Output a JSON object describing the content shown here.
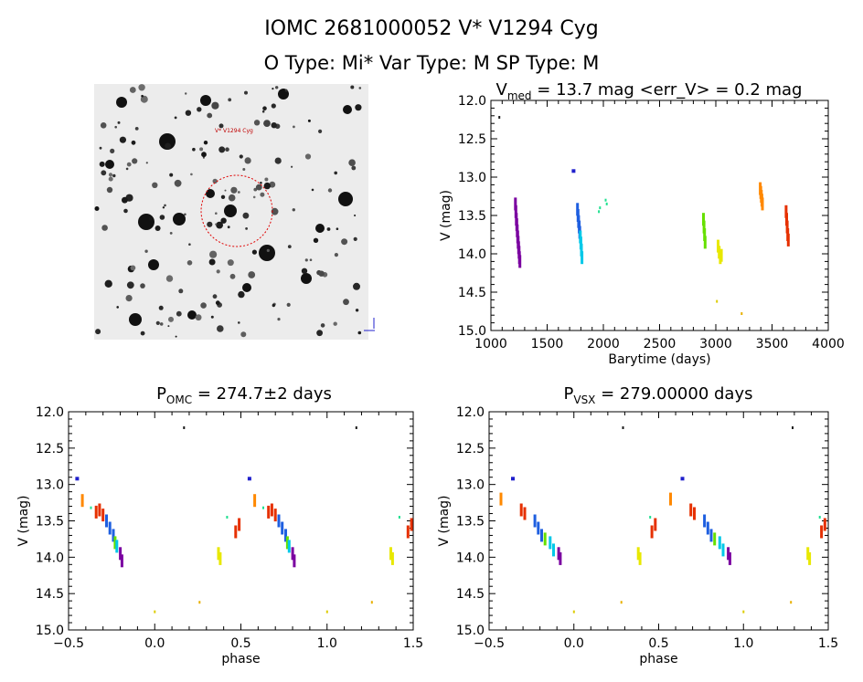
{
  "header": {
    "line1": "IOMC 2681000052    V* V1294 Cyg",
    "line2": "O Type: Mi*  Var Type: M  SP Type: M"
  },
  "finder": {
    "target_label": "V* V1294 Cyg"
  },
  "chart_data": [
    {
      "id": "lightcurve",
      "type": "scatter",
      "title_main": "V",
      "title_sub": "med",
      "title_rest": " = 13.7 mag <err_V> = 0.2 mag",
      "xlabel": "Barytime (days)",
      "ylabel": "V (mag)",
      "xlim": [
        1000,
        4000
      ],
      "ylim": [
        15.0,
        12.0
      ],
      "xticks": [
        1000,
        1500,
        2000,
        2500,
        3000,
        3500,
        4000
      ],
      "xtick_labels": [
        "1000",
        "1500",
        "2000",
        "2500",
        "3000",
        "3500",
        "4000"
      ],
      "yticks": [
        12.0,
        12.5,
        13.0,
        13.5,
        14.0,
        14.5,
        15.0
      ],
      "ytick_labels": [
        "12.0",
        "12.5",
        "13.0",
        "13.5",
        "14.0",
        "14.5",
        "15.0"
      ],
      "groups": [
        {
          "color": "#1a1a1a",
          "x": [
            1075
          ],
          "y": [
            12.22
          ],
          "shape": "dot"
        },
        {
          "color": "#7a00a0",
          "x": [
            1218,
            1222,
            1226,
            1230,
            1234,
            1238,
            1242,
            1246,
            1250,
            1254,
            1258
          ],
          "y": [
            13.35,
            13.45,
            13.55,
            13.62,
            13.7,
            13.78,
            13.85,
            13.92,
            13.98,
            14.05,
            14.1
          ],
          "shape": "bar"
        },
        {
          "color": "#2020cc",
          "x": [
            1735
          ],
          "y": [
            12.92
          ],
          "shape": "sq"
        },
        {
          "color": "#1e5fe0",
          "x": [
            1770,
            1775,
            1780,
            1785,
            1790
          ],
          "y": [
            13.42,
            13.5,
            13.58,
            13.65,
            13.72
          ],
          "shape": "bar"
        },
        {
          "color": "#00c8e8",
          "x": [
            1795,
            1800,
            1805,
            1810
          ],
          "y": [
            13.78,
            13.86,
            13.95,
            14.05
          ],
          "shape": "bar"
        },
        {
          "color": "#20e090",
          "x": [
            1960,
            1970,
            2020,
            2030
          ],
          "y": [
            13.45,
            13.4,
            13.3,
            13.35
          ],
          "shape": "dot"
        },
        {
          "color": "#66e000",
          "x": [
            2890,
            2895,
            2900,
            2905
          ],
          "y": [
            13.55,
            13.65,
            13.75,
            13.85
          ],
          "shape": "bar"
        },
        {
          "color": "#e8e800",
          "x": [
            3020,
            3030,
            3040,
            3050
          ],
          "y": [
            13.9,
            13.98,
            14.05,
            14.02
          ],
          "shape": "bar"
        },
        {
          "color": "#ddcc00",
          "x": [
            3010
          ],
          "y": [
            14.62
          ],
          "shape": "dot"
        },
        {
          "color": "#e8b000",
          "x": [
            3230
          ],
          "y": [
            14.78
          ],
          "shape": "dot"
        },
        {
          "color": "#ff8800",
          "x": [
            3395,
            3400,
            3405,
            3410,
            3415
          ],
          "y": [
            13.15,
            13.2,
            13.25,
            13.3,
            13.35
          ],
          "shape": "bar"
        },
        {
          "color": "#e63000",
          "x": [
            3625,
            3630,
            3635,
            3640,
            3645
          ],
          "y": [
            13.45,
            13.55,
            13.65,
            13.75,
            13.82
          ],
          "shape": "bar"
        }
      ]
    },
    {
      "id": "phase_omc",
      "type": "scatter",
      "title_main": "P",
      "title_sub": "OMC",
      "title_rest": " = 274.7±2 days",
      "xlabel": "phase",
      "ylabel": "V (mag)",
      "xlim": [
        -0.5,
        1.5
      ],
      "ylim": [
        15.0,
        12.0
      ],
      "xticks": [
        -0.5,
        0.0,
        0.5,
        1.0,
        1.5
      ],
      "xtick_labels": [
        "−0.5",
        "0.0",
        "0.5",
        "1.0",
        "1.5"
      ],
      "yticks": [
        12.0,
        12.5,
        13.0,
        13.5,
        14.0,
        14.5,
        15.0
      ],
      "ytick_labels": [
        "12.0",
        "12.5",
        "13.0",
        "13.5",
        "14.0",
        "14.5",
        "15.0"
      ],
      "groups": [
        {
          "color": "#1a1a1a",
          "x": [
            0.17,
            1.17
          ],
          "y": [
            12.22,
            12.22
          ],
          "shape": "dot"
        },
        {
          "color": "#2020cc",
          "x": [
            -0.45,
            0.55
          ],
          "y": [
            12.92,
            12.92
          ],
          "shape": "sq"
        },
        {
          "color": "#ff8800",
          "x": [
            -0.42,
            0.58
          ],
          "y": [
            13.22,
            13.22
          ],
          "shape": "bar"
        },
        {
          "color": "#20e090",
          "x": [
            -0.37,
            0.63,
            0.42,
            1.42
          ],
          "y": [
            13.32,
            13.32,
            13.45,
            13.45
          ],
          "shape": "dot"
        },
        {
          "color": "#e63000",
          "x": [
            -0.34,
            -0.32,
            -0.3,
            0.66,
            0.68,
            0.7,
            0.47,
            0.49,
            1.47,
            1.49
          ],
          "y": [
            13.38,
            13.35,
            13.42,
            13.38,
            13.35,
            13.42,
            13.65,
            13.55,
            13.65,
            13.55
          ],
          "shape": "bar"
        },
        {
          "color": "#1e5fe0",
          "x": [
            -0.28,
            -0.26,
            -0.24,
            0.72,
            0.74,
            0.76
          ],
          "y": [
            13.5,
            13.6,
            13.7,
            13.5,
            13.6,
            13.7
          ],
          "shape": "bar"
        },
        {
          "color": "#66e000",
          "x": [
            -0.23,
            0.77
          ],
          "y": [
            13.8,
            13.8
          ],
          "shape": "bar"
        },
        {
          "color": "#00c8e8",
          "x": [
            -0.22,
            0.78
          ],
          "y": [
            13.85,
            13.85
          ],
          "shape": "bar"
        },
        {
          "color": "#7a00a0",
          "x": [
            -0.2,
            -0.19,
            0.8,
            0.81
          ],
          "y": [
            13.95,
            14.05,
            13.95,
            14.05
          ],
          "shape": "bar"
        },
        {
          "color": "#e8e800",
          "x": [
            0.37,
            0.38,
            1.37,
            1.38
          ],
          "y": [
            13.95,
            14.02,
            13.95,
            14.02
          ],
          "shape": "bar"
        },
        {
          "color": "#ddcc00",
          "x": [
            0.0,
            1.0
          ],
          "y": [
            14.75,
            14.75
          ],
          "shape": "dot"
        },
        {
          "color": "#e8b000",
          "x": [
            0.26,
            1.26
          ],
          "y": [
            14.62,
            14.62
          ],
          "shape": "dot"
        }
      ]
    },
    {
      "id": "phase_vsx",
      "type": "scatter",
      "title_main": "P",
      "title_sub": "VSX",
      "title_rest": " = 279.00000 days",
      "xlabel": "phase",
      "ylabel": "V (mag)",
      "xlim": [
        -0.5,
        1.5
      ],
      "ylim": [
        15.0,
        12.0
      ],
      "xticks": [
        -0.5,
        0.0,
        0.5,
        1.0,
        1.5
      ],
      "xtick_labels": [
        "−0.5",
        "0.0",
        "0.5",
        "1.0",
        "1.5"
      ],
      "yticks": [
        12.0,
        12.5,
        13.0,
        13.5,
        14.0,
        14.5,
        15.0
      ],
      "ytick_labels": [
        "12.0",
        "12.5",
        "13.0",
        "13.5",
        "14.0",
        "14.5",
        "15.0"
      ],
      "groups": [
        {
          "color": "#1a1a1a",
          "x": [
            0.29,
            1.29
          ],
          "y": [
            12.22,
            12.22
          ],
          "shape": "dot"
        },
        {
          "color": "#2020cc",
          "x": [
            -0.36,
            0.64
          ],
          "y": [
            12.92,
            12.92
          ],
          "shape": "sq"
        },
        {
          "color": "#ff8800",
          "x": [
            -0.43,
            0.57
          ],
          "y": [
            13.2,
            13.2
          ],
          "shape": "bar"
        },
        {
          "color": "#e63000",
          "x": [
            -0.31,
            -0.29,
            0.69,
            0.71,
            0.46,
            0.48,
            1.46,
            1.48
          ],
          "y": [
            13.35,
            13.4,
            13.35,
            13.4,
            13.65,
            13.55,
            13.65,
            13.55
          ],
          "shape": "bar"
        },
        {
          "color": "#1e5fe0",
          "x": [
            -0.23,
            -0.21,
            -0.19,
            0.77,
            0.79,
            0.81
          ],
          "y": [
            13.5,
            13.6,
            13.7,
            13.5,
            13.6,
            13.7
          ],
          "shape": "bar"
        },
        {
          "color": "#66e000",
          "x": [
            -0.17,
            0.83
          ],
          "y": [
            13.75,
            13.75
          ],
          "shape": "bar"
        },
        {
          "color": "#00c8e8",
          "x": [
            -0.14,
            -0.12,
            0.86,
            0.88
          ],
          "y": [
            13.8,
            13.9,
            13.8,
            13.9
          ],
          "shape": "bar"
        },
        {
          "color": "#7a00a0",
          "x": [
            -0.09,
            -0.08,
            0.91,
            0.92
          ],
          "y": [
            13.95,
            14.02,
            13.95,
            14.02
          ],
          "shape": "bar"
        },
        {
          "color": "#20e090",
          "x": [
            0.45,
            1.45
          ],
          "y": [
            13.45,
            13.45
          ],
          "shape": "dot"
        },
        {
          "color": "#e8e800",
          "x": [
            0.38,
            0.39,
            1.38,
            1.39
          ],
          "y": [
            13.95,
            14.02,
            13.95,
            14.02
          ],
          "shape": "bar"
        },
        {
          "color": "#ddcc00",
          "x": [
            0.0,
            1.0
          ],
          "y": [
            14.75,
            14.75
          ],
          "shape": "dot"
        },
        {
          "color": "#e8b000",
          "x": [
            0.28,
            1.28
          ],
          "y": [
            14.62,
            14.62
          ],
          "shape": "dot"
        }
      ]
    }
  ]
}
